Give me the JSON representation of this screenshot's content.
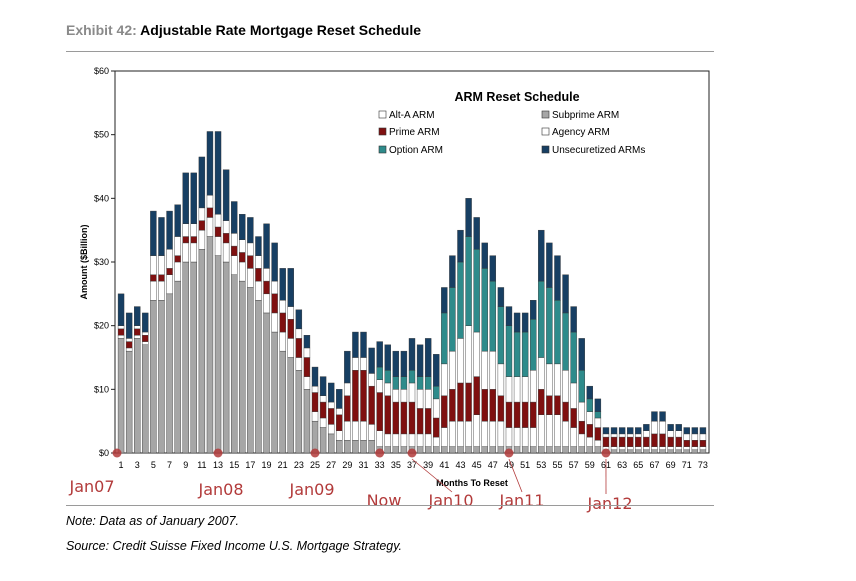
{
  "header": {
    "exhibit_label": "Exhibit 42:",
    "title": "Adjustable Rate Mortgage Reset Schedule"
  },
  "footer": {
    "note": "Note: Data as of January 2007.",
    "source": "Source: Credit Suisse Fixed Income U.S. Mortgage Strategy."
  },
  "colors": {
    "subprime": "#a6a6a6",
    "alt_a": "#ffffff",
    "prime": "#7f1010",
    "agency": "#ffffff",
    "option": "#2e8b8b",
    "unsecuritized": "#173f63",
    "annotation": "#b23a3a"
  },
  "annotations": [
    {
      "label": "Jan07",
      "month": 1
    },
    {
      "label": "Jan08",
      "month": 13
    },
    {
      "label": "Jan09",
      "month": 25
    },
    {
      "label": "Now",
      "month": 33
    },
    {
      "label": "Jan10",
      "month": 37
    },
    {
      "label": "Jan11",
      "month": 49
    },
    {
      "label": "Jan12",
      "month": 61
    }
  ],
  "chart_data": {
    "type": "bar",
    "stacked": true,
    "title": "ARM Reset Schedule",
    "xlabel": "Months To Reset",
    "ylabel": "Amount ($Billion)",
    "ylim": [
      0,
      60
    ],
    "yticks": [
      "$0",
      "$10",
      "$20",
      "$30",
      "$40",
      "$50",
      "$60"
    ],
    "grid": false,
    "legend_position": "top-right",
    "x": [
      1,
      2,
      3,
      4,
      5,
      6,
      7,
      8,
      9,
      10,
      11,
      12,
      13,
      14,
      15,
      16,
      17,
      18,
      19,
      20,
      21,
      22,
      23,
      24,
      25,
      26,
      27,
      28,
      29,
      30,
      31,
      32,
      33,
      34,
      35,
      36,
      37,
      38,
      39,
      40,
      41,
      42,
      43,
      44,
      45,
      46,
      47,
      48,
      49,
      50,
      51,
      52,
      53,
      54,
      55,
      56,
      57,
      58,
      59,
      60,
      61,
      62,
      63,
      64,
      65,
      66,
      67,
      68,
      69,
      70,
      71,
      72,
      73
    ],
    "xtick_labels": [
      "1",
      "3",
      "5",
      "7",
      "9",
      "11",
      "13",
      "15",
      "17",
      "19",
      "21",
      "23",
      "25",
      "27",
      "29",
      "31",
      "33",
      "35",
      "37",
      "39",
      "41",
      "43",
      "45",
      "47",
      "49",
      "51",
      "53",
      "55",
      "57",
      "59",
      "61",
      "63",
      "65",
      "67",
      "69",
      "71",
      "73"
    ],
    "series": [
      {
        "name": "Subprime ARM",
        "values": [
          18,
          16,
          18,
          17,
          24,
          24,
          25,
          27,
          30,
          30,
          32,
          34,
          31,
          30,
          28,
          27,
          26,
          24,
          22,
          19,
          16,
          15,
          13,
          10,
          5,
          4,
          3,
          2,
          2,
          2,
          2,
          2,
          1,
          1,
          1,
          1,
          1,
          1,
          1,
          1,
          1,
          1,
          1,
          1,
          1,
          1,
          1,
          1,
          1,
          1,
          1,
          1,
          1,
          1,
          1,
          1,
          1,
          1,
          1,
          1,
          0.5,
          0.5,
          0.5,
          0.5,
          0.5,
          0.5,
          0.5,
          0.5,
          0.5,
          0.5,
          0.5,
          0.5,
          0.5
        ]
      },
      {
        "name": "Alt-A ARM",
        "values": [
          0.5,
          0.5,
          0.5,
          0.5,
          3,
          3,
          3,
          3,
          3,
          3,
          3,
          3,
          3,
          3,
          3,
          3,
          3,
          3,
          3,
          3,
          3,
          3,
          2,
          2,
          1.5,
          1.5,
          1.5,
          1.5,
          3,
          3,
          3,
          2.5,
          2.5,
          2,
          2,
          2,
          2,
          2,
          2,
          1.5,
          3,
          4,
          4,
          4,
          5,
          4,
          4,
          4,
          3,
          3,
          3,
          3,
          5,
          5,
          5,
          4,
          3,
          2,
          1.5,
          1,
          0.5,
          0.5,
          0.5,
          0.5,
          0.5,
          0.5,
          0.5,
          0.5,
          0.5,
          0.5,
          0.5,
          0.5,
          0.5
        ]
      },
      {
        "name": "Prime ARM",
        "values": [
          1,
          1,
          1,
          1,
          1,
          1,
          1,
          1,
          1,
          1,
          1.5,
          1.5,
          1.5,
          1.5,
          1.5,
          1.5,
          2,
          2,
          2,
          3,
          3,
          3,
          3,
          3,
          3,
          2.5,
          2.5,
          2.5,
          4,
          8,
          8,
          6,
          6,
          6,
          5,
          5,
          5,
          4,
          4,
          3,
          5,
          5,
          6,
          6,
          6,
          5,
          5,
          4,
          4,
          4,
          4,
          4,
          4,
          3,
          3,
          3,
          3,
          2,
          2,
          2,
          1.5,
          1.5,
          1.5,
          1.5,
          1.5,
          1.5,
          2,
          2,
          1.5,
          1.5,
          1,
          1,
          1
        ]
      },
      {
        "name": "Agency ARM",
        "values": [
          0.5,
          0.5,
          0.5,
          0.5,
          3,
          3,
          3,
          3,
          2,
          2,
          2,
          2,
          2,
          2,
          2,
          2,
          2,
          2,
          2,
          2,
          2,
          2,
          1.5,
          1.5,
          1,
          1,
          1,
          1,
          2,
          2,
          2,
          2,
          2,
          2,
          2,
          2,
          3,
          3,
          3,
          3,
          5,
          6,
          7,
          9,
          7,
          6,
          6,
          5,
          4,
          4,
          4,
          5,
          5,
          5,
          5,
          5,
          4,
          3,
          2,
          1.5,
          0.5,
          0.5,
          0.5,
          0.5,
          0.5,
          1,
          2,
          2,
          1,
          1,
          1,
          1,
          1
        ]
      },
      {
        "name": "Option ARM",
        "values": [
          0,
          0,
          0,
          0,
          0,
          0,
          0,
          0,
          0,
          0,
          0,
          0,
          0,
          0,
          0,
          0,
          0,
          0,
          0,
          0,
          0,
          0,
          0,
          0,
          0,
          0,
          0,
          0,
          0,
          0,
          0,
          0,
          2,
          2,
          2,
          2,
          2,
          2,
          2,
          2,
          8,
          10,
          12,
          14,
          13,
          13,
          11,
          9,
          8,
          7,
          7,
          8,
          12,
          12,
          10,
          9,
          8,
          5,
          2,
          1,
          0,
          0,
          0,
          0,
          0,
          0,
          0,
          0,
          0,
          0,
          0,
          0,
          0
        ]
      },
      {
        "name": "Unsecuritized ARMs",
        "values": [
          5,
          4,
          3,
          3,
          7,
          6,
          6,
          5,
          8,
          8,
          8,
          10,
          13,
          8,
          5,
          4,
          4,
          3,
          7,
          6,
          5,
          6,
          3,
          2,
          3,
          3,
          3,
          3,
          5,
          4,
          4,
          4,
          4,
          4,
          4,
          4,
          5,
          5,
          6,
          5,
          4,
          5,
          5,
          6,
          5,
          4,
          4,
          3,
          3,
          3,
          3,
          3,
          8,
          7,
          7,
          6,
          4,
          5,
          2,
          2,
          1,
          1,
          1,
          1,
          1,
          1,
          1.5,
          1.5,
          1,
          1,
          1,
          1,
          1
        ]
      }
    ]
  }
}
